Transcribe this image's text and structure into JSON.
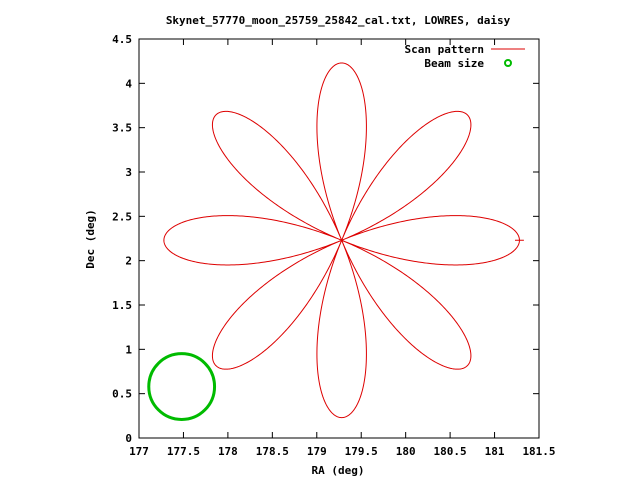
{
  "chart_data": {
    "type": "line",
    "title": "Skynet_57770_moon_25759_25842_cal.txt, LOWRES, daisy",
    "xlabel": "RA (deg)",
    "ylabel": "Dec (deg)",
    "xlim": [
      177,
      181.5
    ],
    "ylim": [
      0,
      4.5
    ],
    "xticks": [
      "177",
      "177.5",
      "178",
      "178.5",
      "179",
      "179.5",
      "180",
      "180.5",
      "181",
      "181.5"
    ],
    "yticks": [
      "0",
      "0.5",
      "1",
      "1.5",
      "2",
      "2.5",
      "3",
      "3.5",
      "4",
      "4.5"
    ],
    "legend_position": "top-right",
    "grid": false,
    "series": [
      {
        "name": "Scan pattern",
        "color": "#dd0000",
        "style": "line",
        "pattern": "daisy",
        "center": [
          179.28,
          2.23
        ],
        "petals": 8,
        "petal_extent_deg": 2.0
      },
      {
        "name": "Beam size",
        "color": "#00bb00",
        "style": "circle",
        "center": [
          177.48,
          0.58
        ],
        "radius_deg": 0.37
      }
    ]
  }
}
